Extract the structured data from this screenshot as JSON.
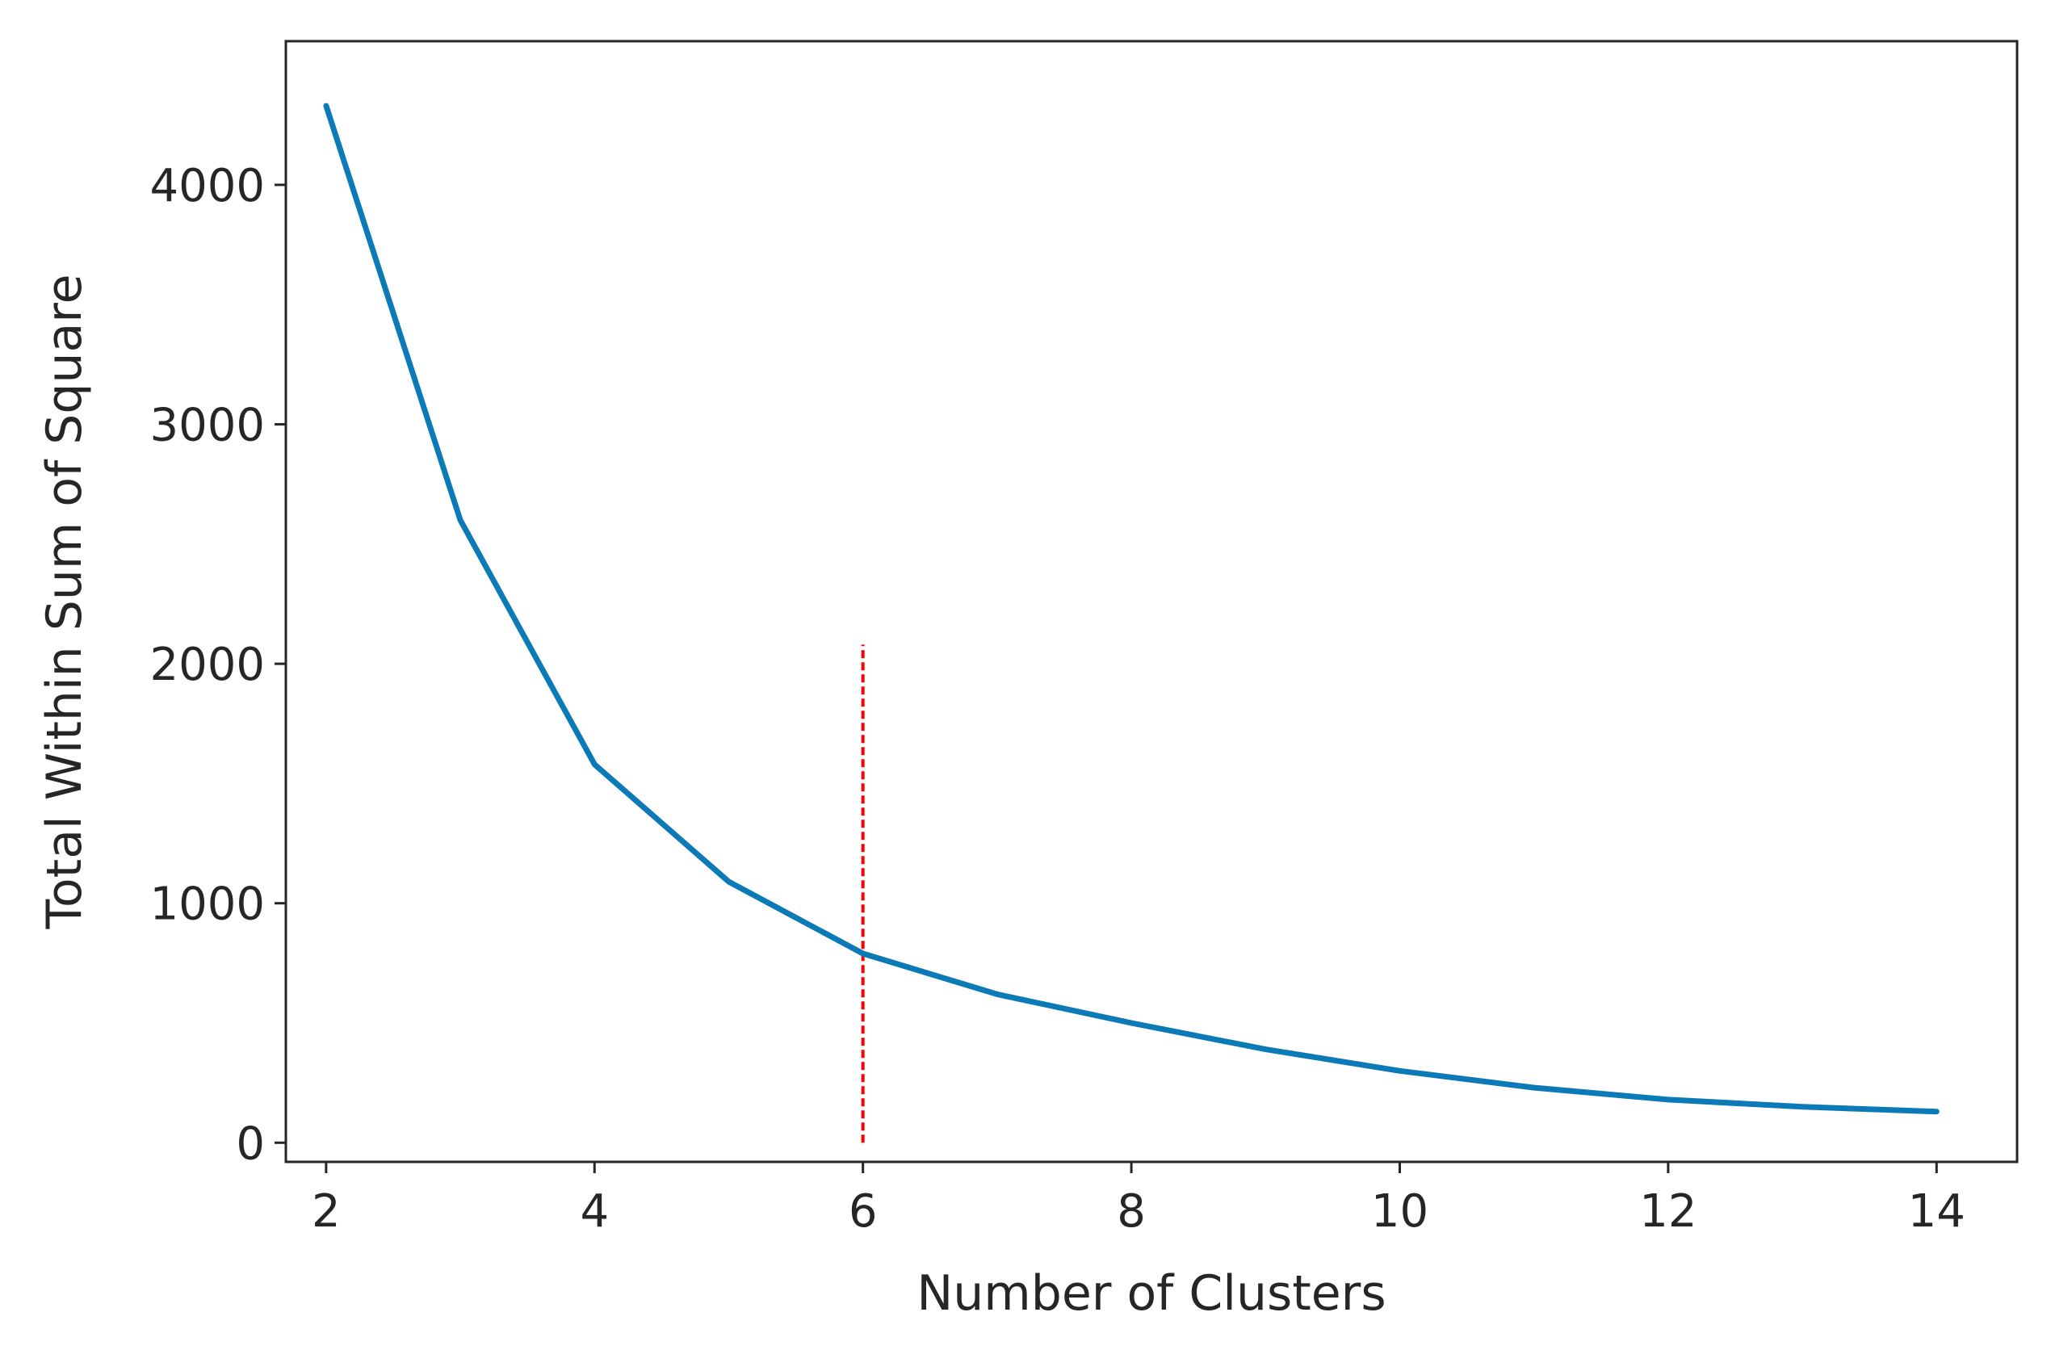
{
  "chart_data": {
    "type": "line",
    "title": "",
    "xlabel": "Number of Clusters",
    "ylabel": "Total Within Sum of Square",
    "xlim": [
      1.7,
      14.6
    ],
    "ylim": [
      -80,
      4600
    ],
    "xticks": [
      2,
      4,
      6,
      8,
      10,
      12,
      14
    ],
    "yticks": [
      0,
      1000,
      2000,
      3000,
      4000
    ],
    "x": [
      2,
      3,
      4,
      5,
      6,
      7,
      8,
      9,
      10,
      11,
      12,
      13,
      14
    ],
    "series": [
      {
        "values": [
          4330,
          2600,
          1580,
          1090,
          790,
          620,
          500,
          390,
          300,
          230,
          180,
          150,
          130
        ],
        "color": "#0d7ab8"
      }
    ],
    "reference_lines": [
      {
        "orientation": "vertical",
        "x": 6,
        "y_from": 0,
        "y_to": 2080,
        "style": "dashed",
        "color": "#ff0000"
      }
    ],
    "grid": false,
    "legend": "none"
  }
}
